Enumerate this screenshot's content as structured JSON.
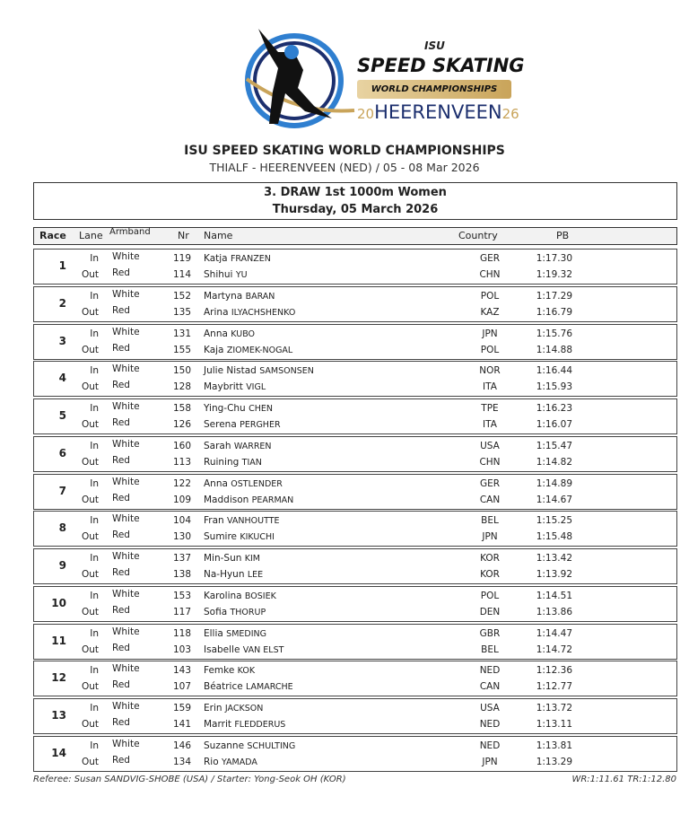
{
  "logo": {
    "isu": "ISU",
    "line1": "SPEED SKATING",
    "line2": "WORLD CHAMPIONSHIPS",
    "year_left": "20",
    "city": "HEERENVEEN",
    "year_right": "26",
    "colors": {
      "navy": "#1c2f6e",
      "gold": "#c9a45a",
      "blue": "#2f7fd0"
    }
  },
  "header": {
    "title": "ISU SPEED SKATING WORLD CHAMPIONSHIPS",
    "subtitle": "THIALF - HEERENVEEN (NED) / 05 - 08 Mar 2026"
  },
  "event": {
    "title": "3. DRAW 1st 1000m Women",
    "date": "Thursday, 05 March 2026"
  },
  "columns": {
    "race": "Race",
    "lane": "Lane",
    "armband": "Armband",
    "nr": "Nr",
    "name": "Name",
    "country": "Country",
    "pb": "PB"
  },
  "races": [
    {
      "race": "1",
      "skaters": [
        {
          "lane": "In",
          "armband": "White",
          "nr": "119",
          "first": "Katja",
          "last": "FRANZEN",
          "country": "GER",
          "pb": "1:17.30"
        },
        {
          "lane": "Out",
          "armband": "Red",
          "nr": "114",
          "first": "Shihui",
          "last": "YU",
          "country": "CHN",
          "pb": "1:19.32"
        }
      ]
    },
    {
      "race": "2",
      "skaters": [
        {
          "lane": "In",
          "armband": "White",
          "nr": "152",
          "first": "Martyna",
          "last": "BARAN",
          "country": "POL",
          "pb": "1:17.29"
        },
        {
          "lane": "Out",
          "armband": "Red",
          "nr": "135",
          "first": "Arina",
          "last": "ILYACHSHENKO",
          "country": "KAZ",
          "pb": "1:16.79"
        }
      ]
    },
    {
      "race": "3",
      "skaters": [
        {
          "lane": "In",
          "armband": "White",
          "nr": "131",
          "first": "Anna",
          "last": "KUBO",
          "country": "JPN",
          "pb": "1:15.76"
        },
        {
          "lane": "Out",
          "armband": "Red",
          "nr": "155",
          "first": "Kaja",
          "last": "ZIOMEK-NOGAL",
          "country": "POL",
          "pb": "1:14.88"
        }
      ]
    },
    {
      "race": "4",
      "skaters": [
        {
          "lane": "In",
          "armband": "White",
          "nr": "150",
          "first": "Julie Nistad",
          "last": "SAMSONSEN",
          "country": "NOR",
          "pb": "1:16.44"
        },
        {
          "lane": "Out",
          "armband": "Red",
          "nr": "128",
          "first": "Maybritt",
          "last": "VIGL",
          "country": "ITA",
          "pb": "1:15.93"
        }
      ]
    },
    {
      "race": "5",
      "skaters": [
        {
          "lane": "In",
          "armband": "White",
          "nr": "158",
          "first": "Ying-Chu",
          "last": "CHEN",
          "country": "TPE",
          "pb": "1:16.23"
        },
        {
          "lane": "Out",
          "armband": "Red",
          "nr": "126",
          "first": "Serena",
          "last": "PERGHER",
          "country": "ITA",
          "pb": "1:16.07"
        }
      ]
    },
    {
      "race": "6",
      "skaters": [
        {
          "lane": "In",
          "armband": "White",
          "nr": "160",
          "first": "Sarah",
          "last": "WARREN",
          "country": "USA",
          "pb": "1:15.47"
        },
        {
          "lane": "Out",
          "armband": "Red",
          "nr": "113",
          "first": "Ruining",
          "last": "TIAN",
          "country": "CHN",
          "pb": "1:14.82"
        }
      ]
    },
    {
      "race": "7",
      "skaters": [
        {
          "lane": "In",
          "armband": "White",
          "nr": "122",
          "first": "Anna",
          "last": "OSTLENDER",
          "country": "GER",
          "pb": "1:14.89"
        },
        {
          "lane": "Out",
          "armband": "Red",
          "nr": "109",
          "first": "Maddison",
          "last": "PEARMAN",
          "country": "CAN",
          "pb": "1:14.67"
        }
      ]
    },
    {
      "race": "8",
      "skaters": [
        {
          "lane": "In",
          "armband": "White",
          "nr": "104",
          "first": "Fran",
          "last": "VANHOUTTE",
          "country": "BEL",
          "pb": "1:15.25"
        },
        {
          "lane": "Out",
          "armband": "Red",
          "nr": "130",
          "first": "Sumire",
          "last": "KIKUCHI",
          "country": "JPN",
          "pb": "1:15.48"
        }
      ]
    },
    {
      "race": "9",
      "skaters": [
        {
          "lane": "In",
          "armband": "White",
          "nr": "137",
          "first": "Min-Sun",
          "last": "KIM",
          "country": "KOR",
          "pb": "1:13.42"
        },
        {
          "lane": "Out",
          "armband": "Red",
          "nr": "138",
          "first": "Na-Hyun",
          "last": "LEE",
          "country": "KOR",
          "pb": "1:13.92"
        }
      ]
    },
    {
      "race": "10",
      "skaters": [
        {
          "lane": "In",
          "armband": "White",
          "nr": "153",
          "first": "Karolina",
          "last": "BOSIEK",
          "country": "POL",
          "pb": "1:14.51"
        },
        {
          "lane": "Out",
          "armband": "Red",
          "nr": "117",
          "first": "Sofia",
          "last": "THORUP",
          "country": "DEN",
          "pb": "1:13.86"
        }
      ]
    },
    {
      "race": "11",
      "skaters": [
        {
          "lane": "In",
          "armband": "White",
          "nr": "118",
          "first": "Ellia",
          "last": "SMEDING",
          "country": "GBR",
          "pb": "1:14.47"
        },
        {
          "lane": "Out",
          "armband": "Red",
          "nr": "103",
          "first": "Isabelle",
          "last": "VAN ELST",
          "country": "BEL",
          "pb": "1:14.72"
        }
      ]
    },
    {
      "race": "12",
      "skaters": [
        {
          "lane": "In",
          "armband": "White",
          "nr": "143",
          "first": "Femke",
          "last": "KOK",
          "country": "NED",
          "pb": "1:12.36"
        },
        {
          "lane": "Out",
          "armband": "Red",
          "nr": "107",
          "first": "Béatrice",
          "last": "LAMARCHE",
          "country": "CAN",
          "pb": "1:12.77"
        }
      ]
    },
    {
      "race": "13",
      "skaters": [
        {
          "lane": "In",
          "armband": "White",
          "nr": "159",
          "first": "Erin",
          "last": "JACKSON",
          "country": "USA",
          "pb": "1:13.72"
        },
        {
          "lane": "Out",
          "armband": "Red",
          "nr": "141",
          "first": "Marrit",
          "last": "FLEDDERUS",
          "country": "NED",
          "pb": "1:13.11"
        }
      ]
    },
    {
      "race": "14",
      "skaters": [
        {
          "lane": "In",
          "armband": "White",
          "nr": "146",
          "first": "Suzanne",
          "last": "SCHULTING",
          "country": "NED",
          "pb": "1:13.81"
        },
        {
          "lane": "Out",
          "armband": "Red",
          "nr": "134",
          "first": "Rio",
          "last": "YAMADA",
          "country": "JPN",
          "pb": "1:13.29"
        }
      ]
    }
  ],
  "footer": {
    "officials": "Referee: Susan SANDVIG-SHOBE (USA) / Starter: Yong-Seok OH (KOR)",
    "records": "WR:1:11.61  TR:1:12.80"
  }
}
